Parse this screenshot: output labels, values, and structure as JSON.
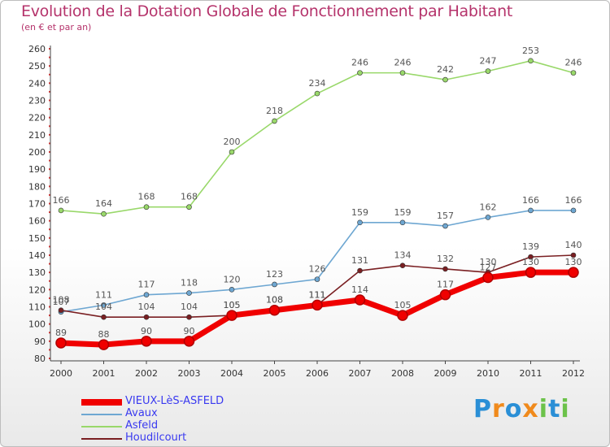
{
  "header": {
    "title": "Evolution de la Dotation Globale de Fonctionnement par Habitant",
    "subtitle": "(en € et par an)"
  },
  "brand": {
    "text": "Proxiti",
    "colors": [
      "#2a8fd6",
      "#f08a1c",
      "#6cc24a"
    ]
  },
  "chart_data": {
    "type": "line",
    "title": "Evolution de la Dotation Globale de Fonctionnement par Habitant",
    "subtitle": "(en € et par an)",
    "x": [
      "2000",
      "2001",
      "2002",
      "2003",
      "2004",
      "2005",
      "2006",
      "2007",
      "2008",
      "2009",
      "2010",
      "2011",
      "2012"
    ],
    "ylim": [
      80,
      260
    ],
    "yticks": [
      80,
      90,
      100,
      110,
      120,
      130,
      140,
      150,
      160,
      170,
      180,
      190,
      200,
      210,
      220,
      230,
      240,
      250,
      260
    ],
    "grid": false,
    "legend_position": "bottom-left",
    "series": [
      {
        "name": "Asfeld",
        "color": "#99d86a",
        "values": [
          166,
          164,
          168,
          168,
          200,
          218,
          234,
          246,
          246,
          242,
          247,
          253,
          246
        ]
      },
      {
        "name": "Avaux",
        "color": "#6ea7d2",
        "values": [
          107,
          111,
          117,
          118,
          120,
          123,
          126,
          159,
          159,
          157,
          162,
          166,
          166
        ]
      },
      {
        "name": "Houdilcourt",
        "color": "#7a1f22",
        "values": [
          108,
          104,
          104,
          104,
          105,
          108,
          111,
          131,
          134,
          132,
          130,
          139,
          140
        ]
      },
      {
        "name": "VIEUX-LèS-ASFELD",
        "color": "#f00000",
        "values": [
          89,
          88,
          90,
          90,
          105,
          108,
          111,
          114,
          105,
          117,
          127,
          130,
          130
        ]
      }
    ]
  },
  "legend": [
    {
      "label": "VIEUX-LèS-ASFELD",
      "color": "#f00000",
      "thick": true
    },
    {
      "label": "Avaux",
      "color": "#6ea7d2",
      "thick": false
    },
    {
      "label": "Asfeld",
      "color": "#99d86a",
      "thick": false
    },
    {
      "label": "Houdilcourt",
      "color": "#7a1f22",
      "thick": false
    }
  ]
}
